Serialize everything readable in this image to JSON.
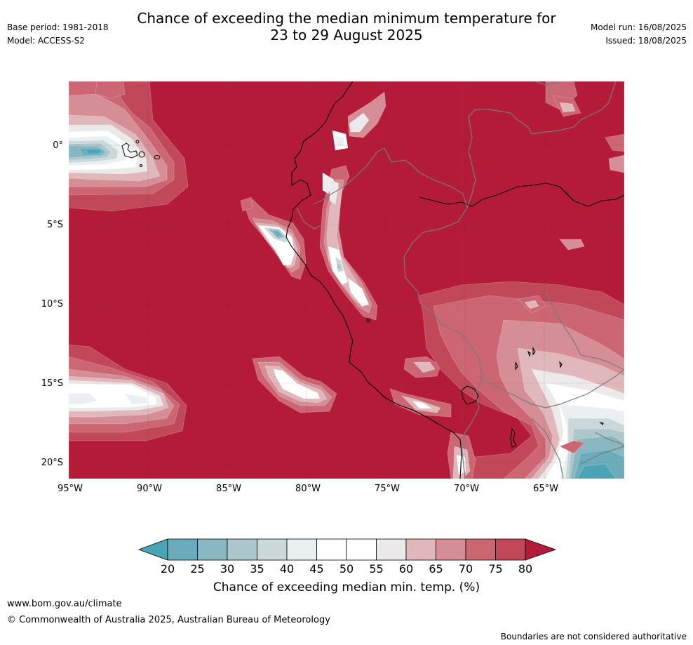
{
  "header": {
    "title_line1": "Chance of exceeding the median minimum temperature for",
    "title_line2": "23 to 29 August 2025",
    "base_period": "Base period: 1981-2018",
    "model": "Model: ACCESS-S2",
    "model_run": "Model run: 16/08/2025",
    "issued": "Issued: 18/08/2025"
  },
  "map": {
    "lat_labels": [
      "0°",
      "5°S",
      "10°S",
      "15°S",
      "20°S"
    ],
    "lon_labels": [
      "95°W",
      "90°W",
      "85°W",
      "80°W",
      "75°W",
      "70°W",
      "65°W"
    ],
    "colors": {
      "c80": "#b31b38",
      "c75": "#c14858",
      "c70": "#cb6672",
      "c65": "#d68e96",
      "c60": "#e0b8bc",
      "c55": "#ebe9ea",
      "c50": "#ffffff",
      "c45": "#eaf0f2",
      "c40": "#cad8da",
      "c35": "#acc7cc",
      "c30": "#88b7c2",
      "c25": "#6aacbb",
      "c20": "#4aa4b8"
    }
  },
  "legend": {
    "ticks": [
      "20",
      "25",
      "30",
      "35",
      "40",
      "45",
      "50",
      "55",
      "60",
      "65",
      "70",
      "75",
      "80"
    ],
    "colors": [
      "#4aa4b8",
      "#6aacbb",
      "#88b7c2",
      "#acc7cc",
      "#cad8da",
      "#eaf0f2",
      "#ffffff",
      "#ffffff",
      "#ebe9ea",
      "#e0b8bc",
      "#d68e96",
      "#cb6672",
      "#c14858",
      "#b31b38"
    ],
    "label": "Chance of exceeding median min. temp. (%)"
  },
  "footer": {
    "website": "www.bom.gov.au/climate",
    "copyright": "© Commonwealth of Australia 2025, Australian Bureau of Meteorology",
    "disclaimer": "Boundaries are not considered authoritative"
  }
}
